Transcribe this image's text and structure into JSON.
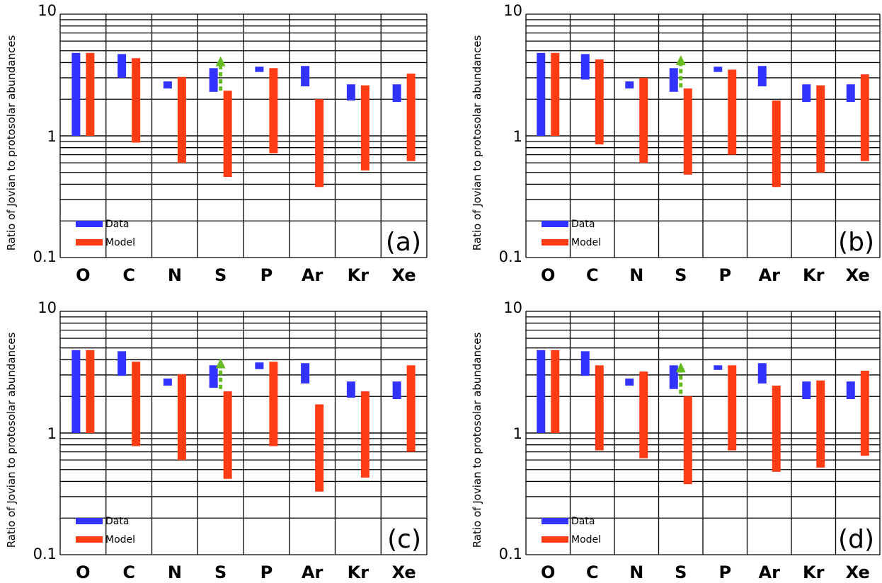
{
  "chart_data": [
    {
      "type": "bar",
      "panel_label": "(a)",
      "ylabel": "Ratio of Jovian to protosolar abundances",
      "yscale": "log",
      "ylim": [
        0.1,
        10
      ],
      "y_ticks": [
        {
          "value": 0.1,
          "label": "0.1"
        },
        {
          "value": 1,
          "label": "1"
        },
        {
          "value": 10,
          "label": "10"
        }
      ],
      "categories": [
        "O",
        "C",
        "N",
        "S",
        "P",
        "Ar",
        "Kr",
        "Xe"
      ],
      "grid": true,
      "legend": {
        "position": "bottom-left",
        "entries": [
          "Data",
          "Model"
        ]
      },
      "series": [
        {
          "name": "Data",
          "color": "#3333ff",
          "ranges": [
            [
              1.0,
              4.8
            ],
            [
              3.0,
              4.7
            ],
            [
              2.45,
              2.8
            ],
            [
              2.3,
              3.6
            ],
            [
              3.35,
              3.7
            ],
            [
              2.55,
              3.75
            ],
            [
              1.95,
              2.65
            ],
            [
              1.9,
              2.65
            ]
          ]
        },
        {
          "name": "Model",
          "color": "#ff3c14",
          "ranges": [
            [
              1.0,
              4.8
            ],
            [
              0.88,
              4.35
            ],
            [
              0.6,
              3.05
            ],
            [
              0.46,
              2.35
            ],
            [
              0.72,
              3.6
            ],
            [
              0.38,
              2.0
            ],
            [
              0.52,
              2.6
            ],
            [
              0.62,
              3.25
            ]
          ]
        }
      ],
      "arrow": {
        "category": "S",
        "from": 2.35,
        "to": 4.5,
        "color": "#66bb22"
      }
    },
    {
      "type": "bar",
      "panel_label": "(b)",
      "ylabel": "Ratio of Jovian to protosolar abundances",
      "yscale": "log",
      "ylim": [
        0.1,
        10
      ],
      "y_ticks": [
        {
          "value": 0.1,
          "label": "0.1"
        },
        {
          "value": 1,
          "label": "1"
        },
        {
          "value": 10,
          "label": "10"
        }
      ],
      "categories": [
        "O",
        "C",
        "N",
        "S",
        "P",
        "Ar",
        "Kr",
        "Xe"
      ],
      "grid": true,
      "legend": {
        "position": "bottom-left",
        "entries": [
          "Data",
          "Model"
        ]
      },
      "series": [
        {
          "name": "Data",
          "color": "#3333ff",
          "ranges": [
            [
              1.0,
              4.8
            ],
            [
              2.9,
              4.7
            ],
            [
              2.45,
              2.8
            ],
            [
              2.3,
              3.6
            ],
            [
              3.35,
              3.7
            ],
            [
              2.55,
              3.75
            ],
            [
              1.9,
              2.65
            ],
            [
              1.9,
              2.65
            ]
          ]
        },
        {
          "name": "Model",
          "color": "#ff3c14",
          "ranges": [
            [
              1.0,
              4.8
            ],
            [
              0.85,
              4.25
            ],
            [
              0.6,
              3.0
            ],
            [
              0.48,
              2.45
            ],
            [
              0.7,
              3.5
            ],
            [
              0.38,
              1.95
            ],
            [
              0.5,
              2.6
            ],
            [
              0.62,
              3.2
            ]
          ]
        }
      ],
      "arrow": {
        "category": "S",
        "from": 2.5,
        "to": 4.6,
        "color": "#66bb22"
      }
    },
    {
      "type": "bar",
      "panel_label": "(c)",
      "ylabel": "Ratio of Jovian to protosolar abundances",
      "yscale": "log",
      "ylim": [
        0.1,
        10
      ],
      "y_ticks": [
        {
          "value": 0.1,
          "label": "0.1"
        },
        {
          "value": 1,
          "label": "1"
        },
        {
          "value": 10,
          "label": "10"
        }
      ],
      "categories": [
        "O",
        "C",
        "N",
        "S",
        "P",
        "Ar",
        "Kr",
        "Xe"
      ],
      "grid": true,
      "legend": {
        "position": "bottom-left",
        "entries": [
          "Data",
          "Model"
        ]
      },
      "series": [
        {
          "name": "Data",
          "color": "#3333ff",
          "ranges": [
            [
              1.0,
              4.8
            ],
            [
              2.95,
              4.7
            ],
            [
              2.45,
              2.8
            ],
            [
              2.35,
              3.6
            ],
            [
              3.35,
              3.8
            ],
            [
              2.55,
              3.75
            ],
            [
              1.95,
              2.65
            ],
            [
              1.9,
              2.65
            ]
          ]
        },
        {
          "name": "Model",
          "color": "#ff3c14",
          "ranges": [
            [
              1.0,
              4.8
            ],
            [
              0.78,
              3.85
            ],
            [
              0.6,
              3.05
            ],
            [
              0.42,
              2.2
            ],
            [
              0.78,
              3.85
            ],
            [
              0.33,
              1.72
            ],
            [
              0.43,
              2.2
            ],
            [
              0.7,
              3.6
            ]
          ]
        }
      ],
      "arrow": {
        "category": "S",
        "from": 2.3,
        "to": 4.1,
        "color": "#66bb22"
      }
    },
    {
      "type": "bar",
      "panel_label": "(d)",
      "ylabel": "Ratio of Jovian to protosolar abundances",
      "yscale": "log",
      "ylim": [
        0.1,
        10
      ],
      "y_ticks": [
        {
          "value": 0.1,
          "label": "0.1"
        },
        {
          "value": 1,
          "label": "1"
        },
        {
          "value": 10,
          "label": "10"
        }
      ],
      "categories": [
        "O",
        "C",
        "N",
        "S",
        "P",
        "Ar",
        "Kr",
        "Xe"
      ],
      "grid": true,
      "legend": {
        "position": "bottom-left",
        "entries": [
          "Data",
          "Model"
        ]
      },
      "series": [
        {
          "name": "Data",
          "color": "#3333ff",
          "ranges": [
            [
              1.0,
              4.8
            ],
            [
              2.95,
              4.7
            ],
            [
              2.45,
              2.8
            ],
            [
              2.3,
              3.6
            ],
            [
              3.3,
              3.6
            ],
            [
              2.55,
              3.75
            ],
            [
              1.9,
              2.65
            ],
            [
              1.9,
              2.65
            ]
          ]
        },
        {
          "name": "Model",
          "color": "#ff3c14",
          "ranges": [
            [
              1.0,
              4.8
            ],
            [
              0.72,
              3.6
            ],
            [
              0.62,
              3.2
            ],
            [
              0.38,
              2.0
            ],
            [
              0.72,
              3.6
            ],
            [
              0.48,
              2.45
            ],
            [
              0.52,
              2.7
            ],
            [
              0.65,
              3.25
            ]
          ]
        }
      ],
      "arrow": {
        "category": "S",
        "from": 2.1,
        "to": 3.8,
        "color": "#66bb22"
      }
    }
  ]
}
